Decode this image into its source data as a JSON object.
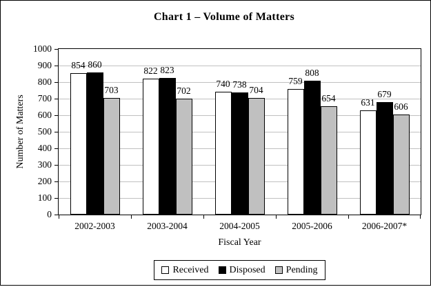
{
  "window": {
    "background": "#ffffff",
    "border_color": "#000000"
  },
  "chart_data": {
    "type": "bar",
    "title": "Chart 1 – Volume of Matters",
    "xlabel": "Fiscal Year",
    "ylabel": "Number of Matters",
    "categories": [
      "2002-2003",
      "2003-2004",
      "2004-2005",
      "2005-2006",
      "2006-2007*"
    ],
    "series": [
      {
        "name": "Received",
        "color": "#ffffff",
        "values": [
          854,
          822,
          740,
          759,
          631
        ]
      },
      {
        "name": "Disposed",
        "color": "#000000",
        "values": [
          860,
          823,
          738,
          808,
          679
        ]
      },
      {
        "name": "Pending",
        "color": "#c0c0c0",
        "values": [
          703,
          702,
          704,
          654,
          606
        ]
      }
    ],
    "ylim": [
      0,
      1000
    ],
    "ytick_step": 100,
    "ytick_labels": [
      "0",
      "100",
      "200",
      "300",
      "400",
      "500",
      "600",
      "700",
      "800",
      "900",
      "1000"
    ],
    "grid": true,
    "gridline_color": "#c0c0c0",
    "axis_color": "#000000",
    "bar_border_color": "#000000",
    "data_labels": true,
    "legend_position": "bottom"
  }
}
